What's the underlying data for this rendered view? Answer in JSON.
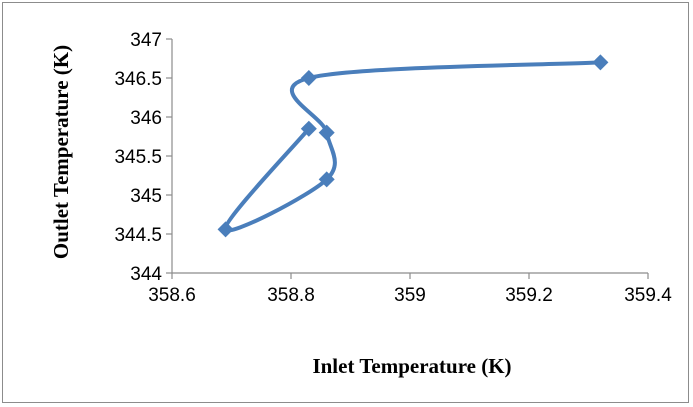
{
  "chart_data": {
    "type": "scatter",
    "title": "",
    "xlabel": "Inlet Temperature (K)",
    "ylabel": "Outlet Temperature (K)",
    "xlim": [
      358.6,
      359.4
    ],
    "ylim": [
      344,
      347
    ],
    "xticks": [
      "358.6",
      "358.8",
      "359",
      "359.2",
      "359.4"
    ],
    "yticks": [
      "344",
      "344.5",
      "345",
      "345.5",
      "346",
      "346.5",
      "347"
    ],
    "grid": false,
    "legend": "none",
    "series": [
      {
        "color": "#4a7ebb",
        "marker": "diamond",
        "line": "smooth",
        "points": [
          {
            "x": 359.32,
            "y": 346.7
          },
          {
            "x": 358.83,
            "y": 346.5
          },
          {
            "x": 358.86,
            "y": 345.8
          },
          {
            "x": 358.86,
            "y": 345.2
          },
          {
            "x": 358.69,
            "y": 344.56
          },
          {
            "x": 358.83,
            "y": 345.85
          }
        ]
      }
    ]
  }
}
